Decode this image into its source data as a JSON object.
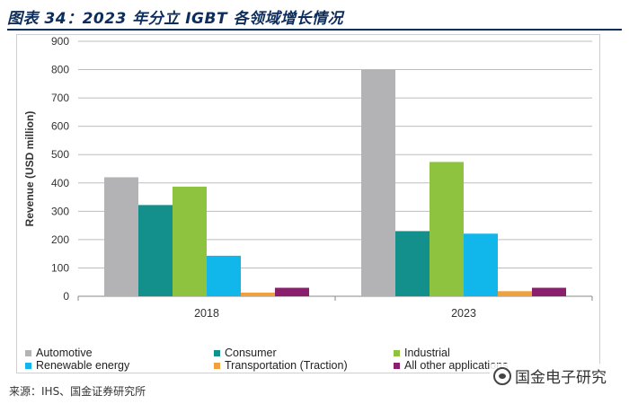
{
  "header": {
    "title": "图表 34：2023 年分立 IGBT 各领域增长情况",
    "source": "来源：IHS、国金证券研究所"
  },
  "watermark": {
    "text": "国金电子研究",
    "icon": "wechat-icon"
  },
  "colors": {
    "title": "#0d2e5c",
    "Automotive": "#b3b3b5",
    "Consumer": "#138f8c",
    "Industrial": "#8ec33f",
    "Renewable energy": "#11b7ea",
    "Transportation (Traction)": "#f0a03c",
    "All other applications": "#8c1e6e"
  },
  "chart_data": {
    "type": "bar",
    "title": "",
    "xlabel": "",
    "ylabel": "Revenue (USD million)",
    "categories": [
      "2018",
      "2023"
    ],
    "ylim": [
      0,
      900
    ],
    "yticks": [
      0,
      100,
      200,
      300,
      400,
      500,
      600,
      700,
      800,
      900
    ],
    "grid": true,
    "legend_position": "bottom",
    "series": [
      {
        "name": "Automotive",
        "values": [
          420,
          800
        ]
      },
      {
        "name": "Consumer",
        "values": [
          322,
          230
        ]
      },
      {
        "name": "Industrial",
        "values": [
          387,
          474
        ]
      },
      {
        "name": "Renewable energy",
        "values": [
          143,
          221
        ]
      },
      {
        "name": "Transportation (Traction)",
        "values": [
          13,
          18
        ]
      },
      {
        "name": "All other applications",
        "values": [
          30,
          30
        ]
      }
    ],
    "legend_labels": [
      "Automotive",
      "Consumer",
      "Industrial",
      "Renewable energy",
      "Transportation (Traction)",
      "All other applications"
    ]
  }
}
